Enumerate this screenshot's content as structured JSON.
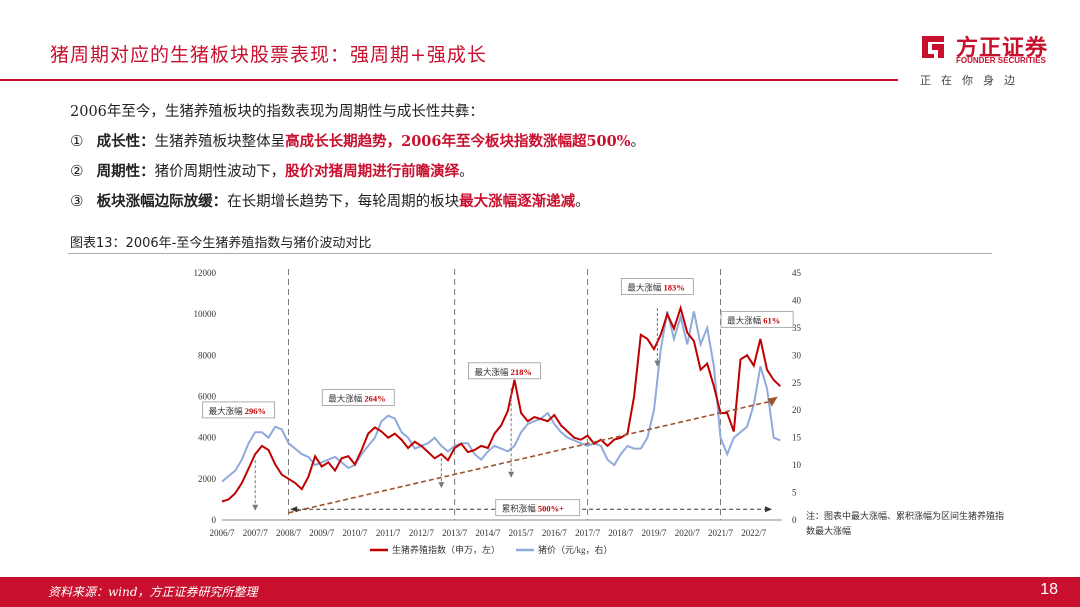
{
  "header": {
    "title": "猪周期对应的生猪板块股票表现：强周期+强成长",
    "brand_cn": "方正证券",
    "brand_en": "FOUNDER SECURITIES",
    "slogan": "正在你身边"
  },
  "bullets": {
    "intro": "2006年至今，生猪养殖板块的指数表现为周期性与成长性共彝：",
    "items": [
      {
        "num": "①",
        "label": "成长性：",
        "text": "生猪养殖板块整体呈",
        "highlight": "高成长长期趋势，2006年至今板块指数涨幅超500%",
        "tail": "。"
      },
      {
        "num": "②",
        "label": "周期性：",
        "text": "猪价周期性波动下，",
        "highlight": "股价对猪周期进行前瞻演绎",
        "tail": "。"
      },
      {
        "num": "③",
        "label": "板块涨幅边际放缓：",
        "text": "在长期增长趋势下，每轮周期的板块",
        "highlight": "最大涨幅逐渐递减",
        "tail": "。"
      }
    ]
  },
  "caption": "图表13：2006年-至今生猪养殖指数与猪价波动对比",
  "note": "注：图表中最大涨幅、累积涨幅为区间生猪养殖指数最大涨幅",
  "footer": {
    "source": "资料来源：wind，方正证券研究所整理",
    "page": "18"
  },
  "colors": {
    "brand": "#c8102e",
    "index_line": "#c00000",
    "price_line": "#8faadc",
    "trend": "#a0522d"
  },
  "chart_data": {
    "type": "line",
    "x_ticks": [
      "2006/7",
      "2007/7",
      "2008/7",
      "2009/7",
      "2010/7",
      "2011/7",
      "2012/7",
      "2013/7",
      "2014/7",
      "2015/7",
      "2016/7",
      "2017/7",
      "2018/7",
      "2019/7",
      "2020/7",
      "2021/7",
      "2022/7"
    ],
    "y_left_ticks": [
      "0",
      "2000",
      "4000",
      "6000",
      "8000",
      "10000",
      "12000"
    ],
    "y_right_ticks": [
      "0",
      "5",
      "10",
      "15",
      "20",
      "25",
      "30",
      "35",
      "40",
      "45"
    ],
    "ylim_left": [
      0,
      12000
    ],
    "ylim_right": [
      0,
      45
    ],
    "series": [
      {
        "name": "生猪养殖指数（申万，左）",
        "axis": "left",
        "x": [
          2006.5,
          2006.7,
          2006.9,
          2007.1,
          2007.3,
          2007.5,
          2007.7,
          2007.9,
          2008.1,
          2008.3,
          2008.5,
          2008.7,
          2008.9,
          2009.1,
          2009.3,
          2009.5,
          2009.7,
          2009.9,
          2010.1,
          2010.3,
          2010.5,
          2010.7,
          2010.9,
          2011.1,
          2011.3,
          2011.5,
          2011.7,
          2011.9,
          2012.1,
          2012.3,
          2012.5,
          2012.7,
          2012.9,
          2013.1,
          2013.3,
          2013.5,
          2013.7,
          2013.9,
          2014.1,
          2014.3,
          2014.5,
          2014.7,
          2014.9,
          2015.1,
          2015.3,
          2015.5,
          2015.7,
          2015.9,
          2016.1,
          2016.3,
          2016.5,
          2016.7,
          2016.9,
          2017.1,
          2017.3,
          2017.5,
          2017.7,
          2017.9,
          2018.1,
          2018.3,
          2018.5,
          2018.7,
          2018.9,
          2019.1,
          2019.3,
          2019.5,
          2019.7,
          2019.9,
          2020.1,
          2020.3,
          2020.5,
          2020.7,
          2020.9,
          2021.1,
          2021.3,
          2021.5,
          2021.7,
          2021.9,
          2022.1,
          2022.3,
          2022.5,
          2022.7,
          2022.9,
          2023.1,
          2023.3
        ],
        "y": [
          900,
          1000,
          1300,
          1800,
          2500,
          3200,
          3600,
          3400,
          2700,
          2200,
          2000,
          1800,
          1500,
          2100,
          3100,
          2600,
          2800,
          2400,
          3000,
          3100,
          2700,
          3400,
          4200,
          4500,
          4300,
          4000,
          4200,
          3900,
          3500,
          3800,
          3600,
          3300,
          3000,
          3200,
          2900,
          3500,
          3700,
          3300,
          3400,
          3600,
          3500,
          4200,
          4600,
          5300,
          6800,
          5200,
          4800,
          5000,
          4900,
          4800,
          5100,
          4600,
          4300,
          4000,
          3900,
          4100,
          3700,
          3900,
          3600,
          3900,
          4000,
          4200,
          6000,
          9000,
          8800,
          8300,
          9000,
          10000,
          9300,
          10300,
          9100,
          8700,
          7300,
          7600,
          6500,
          5200,
          5200,
          4300,
          7800,
          8000,
          7500,
          8800,
          7300,
          6800,
          6500
        ]
      },
      {
        "name": "猪价（元/kg，右）",
        "axis": "right",
        "x": [
          2006.5,
          2006.7,
          2006.9,
          2007.1,
          2007.3,
          2007.5,
          2007.7,
          2007.9,
          2008.1,
          2008.3,
          2008.5,
          2008.7,
          2008.9,
          2009.1,
          2009.3,
          2009.5,
          2009.7,
          2009.9,
          2010.1,
          2010.3,
          2010.5,
          2010.7,
          2010.9,
          2011.1,
          2011.3,
          2011.5,
          2011.7,
          2011.9,
          2012.1,
          2012.3,
          2012.5,
          2012.7,
          2012.9,
          2013.1,
          2013.3,
          2013.5,
          2013.7,
          2013.9,
          2014.1,
          2014.3,
          2014.5,
          2014.7,
          2014.9,
          2015.1,
          2015.3,
          2015.5,
          2015.7,
          2015.9,
          2016.1,
          2016.3,
          2016.5,
          2016.7,
          2016.9,
          2017.1,
          2017.3,
          2017.5,
          2017.7,
          2017.9,
          2018.1,
          2018.3,
          2018.5,
          2018.7,
          2018.9,
          2019.1,
          2019.3,
          2019.5,
          2019.7,
          2019.9,
          2020.1,
          2020.3,
          2020.5,
          2020.7,
          2020.9,
          2021.1,
          2021.3,
          2021.5,
          2021.7,
          2021.9,
          2022.1,
          2022.3,
          2022.5,
          2022.7,
          2022.9,
          2023.1,
          2023.3
        ],
        "y": [
          7,
          8,
          9,
          11,
          14,
          16,
          16,
          15,
          17,
          16.5,
          14,
          13,
          12,
          11.5,
          10,
          10.5,
          11,
          11.5,
          10.5,
          9.5,
          10,
          12,
          13.5,
          15,
          18,
          19,
          18.5,
          16,
          15,
          13,
          13.5,
          14,
          15,
          13.5,
          12.5,
          13.5,
          14,
          14,
          12,
          11,
          12.5,
          13.5,
          13,
          12.5,
          13.5,
          16,
          17.5,
          18,
          18.5,
          19.5,
          17.5,
          16,
          15,
          14.5,
          14,
          13.5,
          14,
          13.5,
          11,
          10,
          12,
          13.5,
          13,
          13,
          15,
          20,
          31,
          38,
          33,
          37,
          32,
          38,
          32,
          35,
          28,
          15,
          12,
          15,
          16,
          17,
          21,
          28,
          24,
          15,
          14.5
        ]
      },
      {
        "name": "trend",
        "axis": "left",
        "x": [
          2008.5,
          2023.1
        ],
        "y": [
          350,
          5800
        ]
      }
    ],
    "dividers": [
      2008.5,
      2013.5,
      2017.5,
      2021.5
    ],
    "annotations": [
      {
        "label": "最大涨幅",
        "value": "296%",
        "x": 2007.0,
        "y": 5300
      },
      {
        "label": "最大涨幅",
        "value": "264%",
        "x": 2010.6,
        "y": 5900
      },
      {
        "label": "最大涨幅",
        "value": "218%",
        "x": 2015.0,
        "y": 7200
      },
      {
        "label": "最大涨幅",
        "value": "183%",
        "x": 2019.6,
        "y": 11300
      },
      {
        "label": "最大涨幅",
        "value": "61%",
        "x": 2022.6,
        "y": 9700
      },
      {
        "label": "累积涨幅",
        "value": "500%+",
        "x": 2016.0,
        "y": 550
      }
    ],
    "arrows_down": [
      {
        "x": 2007.5,
        "from": 2900,
        "to": 500
      },
      {
        "x": 2013.1,
        "from": 3000,
        "to": 1600
      },
      {
        "x": 2015.2,
        "from": 6400,
        "to": 2100
      },
      {
        "x": 2019.6,
        "from": 10300,
        "to": 7500
      }
    ]
  }
}
